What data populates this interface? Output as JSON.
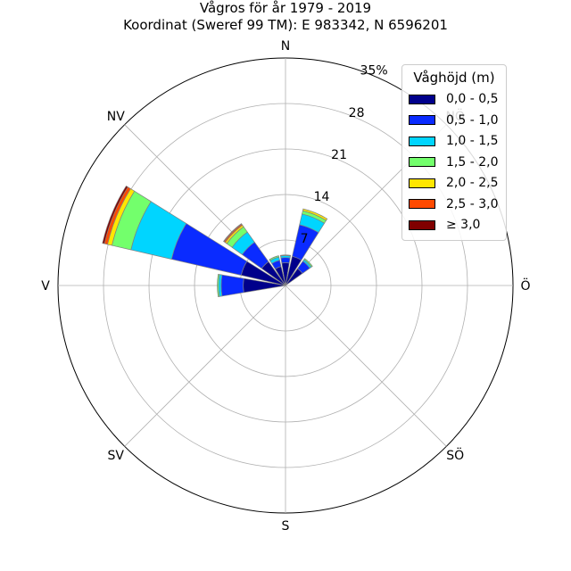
{
  "title": "Vågros för år 1979 - 2019",
  "subtitle": "Koordinat (Sweref 99 TM): E 983342, N 6596201",
  "chart_data": {
    "type": "windrose",
    "title": "Vågros för år 1979 - 2019",
    "subtitle": "Koordinat (Sweref 99 TM): E 983342, N 6596201",
    "radial_ticks": [
      "7",
      "14",
      "21",
      "28",
      "35%"
    ],
    "radial_values": [
      7,
      14,
      21,
      28,
      35
    ],
    "rmax": 35,
    "direction_labels": [
      "N",
      "NV",
      "V",
      "SV",
      "S",
      "SÖ",
      "Ö",
      "NÖ"
    ],
    "direction_angles": [
      0,
      315,
      270,
      225,
      180,
      135,
      90,
      45
    ],
    "legend_title": "Våghöjd (m)",
    "bins": [
      "0,0 - 0,5",
      "0,5 - 1,0",
      "1,0 - 1,5",
      "1,5 - 2,0",
      "2,0 - 2,5",
      "2,5 - 3,0",
      "≥ 3,0"
    ],
    "colors": [
      "#00008b",
      "#0a2bff",
      "#00d5ff",
      "#73ff6c",
      "#ffe600",
      "#ff4a00",
      "#800000"
    ],
    "sectors": [
      {
        "direction": 0,
        "values": [
          3.5,
          0.8,
          0.3,
          0.1,
          0.0,
          0.0,
          0.0
        ]
      },
      {
        "direction": 22.5,
        "values": [
          4.6,
          5.0,
          1.7,
          0.5,
          0.3,
          0.0,
          0.0
        ]
      },
      {
        "direction": 45,
        "values": [
          3.2,
          1.4,
          0.3,
          0.2,
          0.0,
          0.0,
          0.0
        ]
      },
      {
        "direction": 337.5,
        "values": [
          3.0,
          1.0,
          0.5,
          0.2,
          0.0,
          0.0,
          0.0
        ]
      },
      {
        "direction": 315,
        "values": [
          4.5,
          3.7,
          1.9,
          1.0,
          0.3,
          0.2,
          0.1
        ]
      },
      {
        "direction": 292.5,
        "values": [
          7.0,
          11.0,
          6.4,
          3.0,
          0.7,
          0.5,
          0.3
        ]
      },
      {
        "direction": 270,
        "values": [
          6.5,
          3.4,
          0.4,
          0.2,
          0.0,
          0.0,
          0.0
        ]
      }
    ]
  },
  "legend": {
    "title": "Våghöjd (m)",
    "items": [
      {
        "label": "0,0 - 0,5",
        "color": "#00008b"
      },
      {
        "label": "0,5 - 1,0",
        "color": "#0a2bff"
      },
      {
        "label": "1,0 - 1,5",
        "color": "#00d5ff"
      },
      {
        "label": "1,5 - 2,0",
        "color": "#73ff6c"
      },
      {
        "label": "2,0 - 2,5",
        "color": "#ffe600"
      },
      {
        "label": "2,5 - 3,0",
        "color": "#ff4a00"
      },
      {
        "label": "≥ 3,0",
        "color": "#800000"
      }
    ]
  }
}
